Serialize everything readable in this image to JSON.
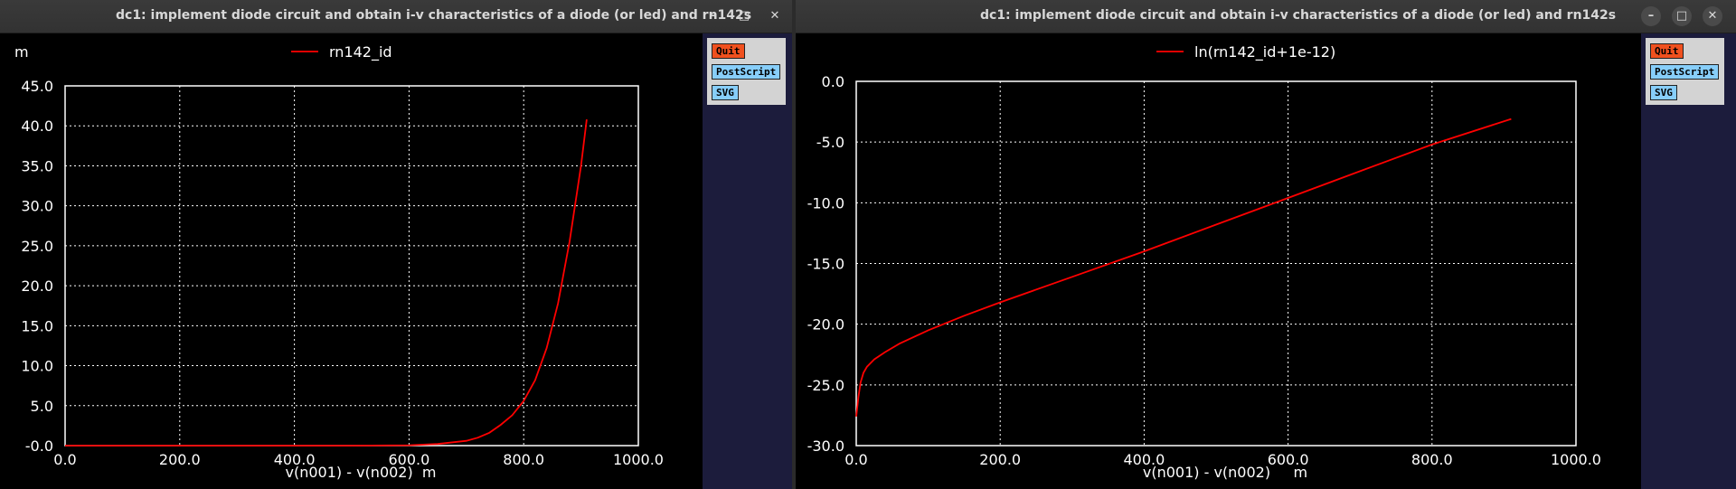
{
  "windows": [
    {
      "title": "dc1: implement diode circuit and obtain i-v characteristics of a diode (or led) and rn142s",
      "controls": {
        "minimize": "–",
        "maximize": "□",
        "close": "✕"
      },
      "buttons": {
        "quit": "Quit",
        "postscript": "PostScript",
        "svg": "SVG"
      },
      "scale_label": "m"
    },
    {
      "title": "dc1: implement diode circuit and obtain i-v characteristics of a diode (or led) and rn142s",
      "controls": {
        "minimize": "–",
        "maximize": "□",
        "close": "✕"
      },
      "buttons": {
        "quit": "Quit",
        "postscript": "PostScript",
        "svg": "SVG"
      },
      "scale_label": ""
    }
  ],
  "colors": {
    "background": "#000000",
    "grid": "#ffffff",
    "trace": "#ff0000",
    "panel": "#1c1c3c",
    "quit": "#f0501e",
    "button": "#87cefa"
  },
  "chart_data": [
    {
      "type": "line",
      "title": "",
      "xlabel": "v(n001) - v(n002)  m",
      "ylabel": "",
      "y_scale_label": "m",
      "xlim": [
        0,
        1000
      ],
      "ylim": [
        0,
        45
      ],
      "xticks": [
        "0.0",
        "200.0",
        "400.0",
        "600.0",
        "800.0",
        "1000.0"
      ],
      "yticks": [
        "-0.0",
        "5.0",
        "10.0",
        "15.0",
        "20.0",
        "25.0",
        "30.0",
        "35.0",
        "40.0",
        "45.0"
      ],
      "grid": true,
      "legend": "top-center",
      "series": [
        {
          "name": "rn142_id",
          "color": "#ff0000",
          "x": [
            0,
            100,
            200,
            300,
            400,
            500,
            600,
            650,
            700,
            720,
            740,
            760,
            780,
            800,
            820,
            840,
            860,
            880,
            900,
            910
          ],
          "y": [
            0,
            0,
            0,
            0,
            0,
            0,
            0.05,
            0.2,
            0.6,
            1.0,
            1.6,
            2.6,
            3.8,
            5.6,
            8.2,
            12.2,
            17.8,
            25.5,
            35.0,
            40.8
          ]
        }
      ]
    },
    {
      "type": "line",
      "title": "",
      "xlabel": "v(n001) - v(n002)     m",
      "ylabel": "",
      "xlim": [
        0,
        1000
      ],
      "ylim": [
        -30,
        0
      ],
      "xticks": [
        "0.0",
        "200.0",
        "400.0",
        "600.0",
        "800.0",
        "1000.0"
      ],
      "yticks": [
        "-30.0",
        "-25.0",
        "-20.0",
        "-15.0",
        "-10.0",
        "-5.0",
        "0.0"
      ],
      "grid": true,
      "legend": "top-center",
      "series": [
        {
          "name": "ln(rn142_id+1e-12)",
          "color": "#ff0000",
          "x": [
            0,
            3,
            6,
            10,
            15,
            25,
            40,
            60,
            100,
            150,
            200,
            300,
            400,
            500,
            600,
            700,
            800,
            910
          ],
          "y": [
            -27.6,
            -26.0,
            -24.8,
            -24.0,
            -23.5,
            -22.9,
            -22.3,
            -21.6,
            -20.5,
            -19.3,
            -18.2,
            -16.1,
            -14.0,
            -11.8,
            -9.6,
            -7.4,
            -5.2,
            -3.1
          ]
        }
      ]
    }
  ]
}
